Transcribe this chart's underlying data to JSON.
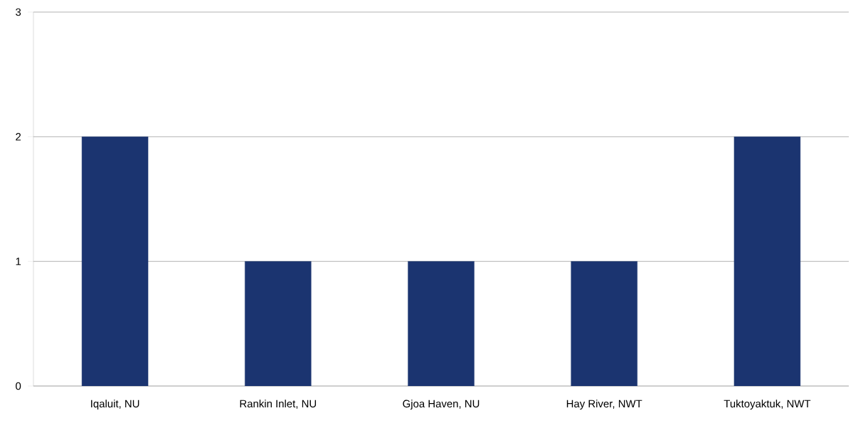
{
  "chart_data": {
    "type": "bar",
    "categories": [
      "Iqaluit, NU",
      "Rankin Inlet, NU",
      "Gjoa Haven, NU",
      "Hay River, NWT",
      "Tuktoyaktuk, NWT"
    ],
    "values": [
      2,
      1,
      1,
      1,
      2
    ],
    "color": "#1b3470",
    "ylim": [
      0,
      3
    ],
    "yticks": [
      0,
      1,
      2,
      3
    ],
    "grid": "y"
  }
}
